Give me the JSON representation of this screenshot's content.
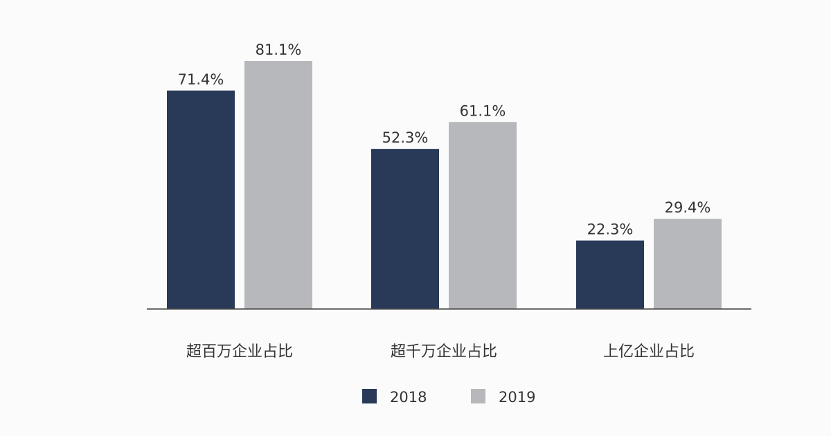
{
  "chart_data": {
    "type": "bar",
    "title": "",
    "xlabel": "",
    "ylabel": "",
    "ylim": [
      0,
      90
    ],
    "grid": false,
    "legend_position": "bottom-center",
    "categories": [
      "超百万企业占比",
      "超千万企业占比",
      "上亿企业占比"
    ],
    "series": [
      {
        "name": "2018",
        "color": "#283a58",
        "values": [
          71.4,
          52.3,
          22.3
        ],
        "labels": [
          "71.4%",
          "52.3%",
          "22.3%"
        ]
      },
      {
        "name": "2019",
        "color": "#b7b8bc",
        "values": [
          81.1,
          61.1,
          29.4
        ],
        "labels": [
          "81.1%",
          "61.1%",
          "29.4%"
        ]
      }
    ],
    "colors": {
      "axis": "#4a4a4a",
      "text": "#333333",
      "background": "#fbfbfb"
    }
  }
}
